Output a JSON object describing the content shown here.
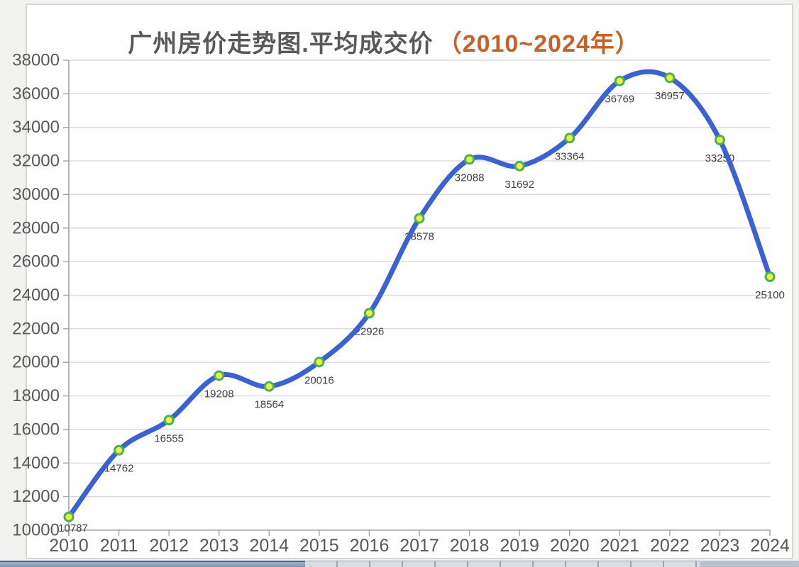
{
  "chart_data": {
    "type": "line",
    "title": "广州房价走势图.平均成交价",
    "title_range": "（2010~2024年）",
    "categories": [
      "2010",
      "2011",
      "2012",
      "2013",
      "2014",
      "2015",
      "2016",
      "2017",
      "2018",
      "2019",
      "2020",
      "2021",
      "2022",
      "2023",
      "2024"
    ],
    "values": [
      10787,
      14762,
      16555,
      19208,
      18564,
      20016,
      22926,
      28578,
      32088,
      31692,
      33364,
      36769,
      36957,
      33250,
      25100
    ],
    "series_name": "平均成交价",
    "xlabel": "",
    "ylabel": "",
    "ylim": [
      10000,
      38000
    ],
    "ytick_step": 2000,
    "yticks": [
      10000,
      12000,
      14000,
      16000,
      18000,
      20000,
      22000,
      24000,
      26000,
      28000,
      30000,
      32000,
      34000,
      36000,
      38000
    ],
    "grid": true,
    "smooth": true,
    "data_labels": true,
    "legend_position": "none"
  },
  "colors": {
    "line": "#3a62d0",
    "marker_fill": "#e8f24a",
    "marker_stroke": "#4cb251",
    "grid": "#dadada",
    "axis": "#a3a3a3",
    "tick_label": "#595959",
    "data_label": "#3f3f3f",
    "title": "#595959",
    "title_range": "#c8602a",
    "panel_bg": "#ffffff",
    "panel_border": "#d6d6d3",
    "page_bg": "#f2f2f0"
  }
}
